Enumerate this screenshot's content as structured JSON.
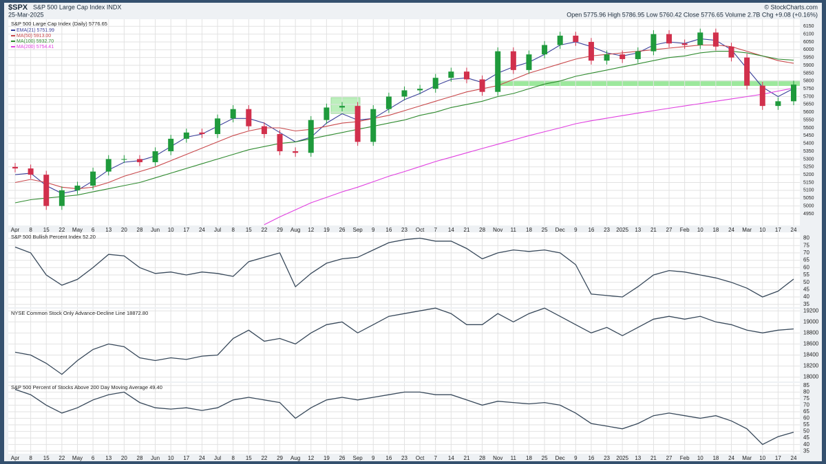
{
  "header": {
    "symbol": "$SPX",
    "name": "S&P 500 Large Cap Index INDX",
    "date": "25-Mar-2025",
    "quote": "Open 5775.96 High 5786.95 Low 5760.42 Close 5776.65 Volume 2.7B Chg +9.08 (+0.16%)",
    "credit": "© StockCharts.com"
  },
  "chart_data": [
    {
      "type": "candlestick",
      "title": "S&P 500 Large Cap Index (Daily) 5776.65",
      "categories": [
        "Apr",
        "8",
        "15",
        "22",
        "May",
        "6",
        "13",
        "20",
        "28",
        "Jun",
        "10",
        "17",
        "24",
        "Jul",
        "8",
        "15",
        "22",
        "29",
        "Aug",
        "12",
        "19",
        "26",
        "Sep",
        "9",
        "16",
        "23",
        "Oct",
        "7",
        "14",
        "21",
        "28",
        "Nov",
        "11",
        "18",
        "25",
        "Dec",
        "9",
        "16",
        "23",
        "2025",
        "13",
        "21",
        "27",
        "Feb",
        "10",
        "18",
        "24",
        "Mar",
        "10",
        "17",
        "24"
      ],
      "open": [
        5250,
        5240,
        5200,
        5000,
        5100,
        5130,
        5220,
        5300,
        5300,
        5280,
        5350,
        5430,
        5470,
        5460,
        5560,
        5620,
        5510,
        5460,
        5350,
        5340,
        5550,
        5630,
        5640,
        5410,
        5620,
        5700,
        5740,
        5750,
        5820,
        5860,
        5810,
        5730,
        5990,
        5870,
        5970,
        6030,
        6090,
        6050,
        5930,
        5970,
        5940,
        5990,
        6100,
        6040,
        6030,
        6110,
        6020,
        5950,
        5770,
        5640,
        5670
      ],
      "high": [
        5275,
        5265,
        5225,
        5125,
        5155,
        5245,
        5325,
        5325,
        5325,
        5375,
        5455,
        5495,
        5495,
        5585,
        5645,
        5645,
        5535,
        5485,
        5375,
        5575,
        5655,
        5665,
        5665,
        5645,
        5725,
        5765,
        5775,
        5845,
        5885,
        5885,
        5835,
        6015,
        6015,
        5995,
        6055,
        6115,
        6115,
        6075,
        5995,
        5995,
        6015,
        6125,
        6125,
        6065,
        6135,
        6135,
        6045,
        5975,
        5795,
        5695,
        5802
      ],
      "low": [
        5215,
        5175,
        4975,
        4975,
        5075,
        5105,
        5195,
        5275,
        5255,
        5255,
        5325,
        5405,
        5435,
        5435,
        5535,
        5485,
        5435,
        5325,
        5315,
        5315,
        5525,
        5605,
        5385,
        5385,
        5595,
        5675,
        5715,
        5725,
        5795,
        5785,
        5705,
        5705,
        5845,
        5845,
        5945,
        6005,
        6025,
        5905,
        5905,
        5915,
        5915,
        5965,
        6015,
        6005,
        6005,
        5995,
        5925,
        5745,
        5615,
        5615,
        5645
      ],
      "close": [
        5240,
        5200,
        5000,
        5100,
        5130,
        5220,
        5300,
        5300,
        5280,
        5350,
        5430,
        5470,
        5460,
        5560,
        5620,
        5510,
        5460,
        5350,
        5340,
        5550,
        5630,
        5640,
        5410,
        5620,
        5700,
        5740,
        5750,
        5820,
        5860,
        5810,
        5730,
        5990,
        5870,
        5970,
        6030,
        6090,
        6050,
        5930,
        5970,
        5940,
        5990,
        6100,
        6040,
        6030,
        6110,
        6020,
        5950,
        5770,
        5640,
        5670,
        5776.65
      ],
      "up_color": "#1f9a3c",
      "down_color": "#d1304c",
      "series": [
        {
          "name": "EMA(21) 5751.99",
          "color": "#3a3f9a",
          "values": [
            5200,
            5210,
            5130,
            5080,
            5100,
            5160,
            5230,
            5280,
            5290,
            5320,
            5380,
            5440,
            5460,
            5510,
            5560,
            5560,
            5530,
            5470,
            5410,
            5440,
            5530,
            5590,
            5550,
            5560,
            5620,
            5680,
            5720,
            5770,
            5810,
            5820,
            5790,
            5850,
            5890,
            5920,
            5970,
            6030,
            6050,
            6020,
            5980,
            5960,
            5980,
            6030,
            6050,
            6040,
            6070,
            6060,
            6000,
            5880,
            5760,
            5700,
            5752
          ]
        },
        {
          "name": "MA(50) 5913.00",
          "color": "#c8474a",
          "values": [
            5150,
            5170,
            5150,
            5120,
            5110,
            5120,
            5150,
            5190,
            5220,
            5250,
            5290,
            5330,
            5370,
            5410,
            5450,
            5480,
            5500,
            5500,
            5480,
            5490,
            5510,
            5530,
            5540,
            5560,
            5580,
            5610,
            5640,
            5670,
            5700,
            5730,
            5750,
            5770,
            5810,
            5850,
            5880,
            5910,
            5940,
            5960,
            5970,
            5980,
            5990,
            6000,
            6010,
            6020,
            6030,
            6030,
            6020,
            5990,
            5960,
            5930,
            5913
          ]
        },
        {
          "name": "MA(100) 5932.70",
          "color": "#2e8a2e",
          "values": [
            5020,
            5040,
            5050,
            5060,
            5070,
            5090,
            5110,
            5130,
            5150,
            5180,
            5210,
            5240,
            5270,
            5300,
            5330,
            5360,
            5380,
            5400,
            5410,
            5430,
            5450,
            5470,
            5490,
            5510,
            5530,
            5550,
            5580,
            5600,
            5630,
            5650,
            5670,
            5700,
            5720,
            5750,
            5780,
            5800,
            5830,
            5850,
            5870,
            5890,
            5910,
            5930,
            5950,
            5960,
            5980,
            5990,
            5990,
            5980,
            5960,
            5940,
            5933
          ]
        },
        {
          "name": "MA(200) 5754.41",
          "color": "#e03fe0",
          "values": [
            null,
            null,
            null,
            null,
            null,
            null,
            null,
            null,
            null,
            null,
            null,
            null,
            null,
            null,
            null,
            null,
            4880,
            4930,
            4975,
            5020,
            5055,
            5090,
            5120,
            5155,
            5190,
            5220,
            5252,
            5284,
            5312,
            5340,
            5368,
            5395,
            5422,
            5450,
            5475,
            5500,
            5526,
            5545,
            5562,
            5578,
            5594,
            5610,
            5625,
            5640,
            5655,
            5670,
            5685,
            5700,
            5715,
            5735,
            5754
          ]
        }
      ],
      "ylim": [
        4875,
        6195
      ],
      "yticks": [
        4950,
        5000,
        5050,
        5100,
        5150,
        5200,
        5250,
        5300,
        5350,
        5400,
        5450,
        5500,
        5550,
        5600,
        5650,
        5700,
        5750,
        5800,
        5850,
        5900,
        5950,
        6000,
        6050,
        6100,
        6150
      ],
      "grid": true
    },
    {
      "type": "line",
      "title": "S&P 500 Bullish Percent Index 52.20",
      "color": "#37485a",
      "values": [
        74,
        70,
        55,
        48,
        52,
        60,
        69,
        68,
        60,
        56,
        57,
        55,
        57,
        56,
        54,
        64,
        67,
        70,
        47,
        56,
        63,
        66,
        67,
        72,
        77,
        79,
        80,
        78,
        78,
        73,
        66,
        70,
        72,
        71,
        72,
        70,
        62,
        42,
        41,
        40,
        47,
        55,
        58,
        57,
        55,
        53,
        50,
        46,
        40,
        44,
        52.2
      ],
      "ylim": [
        33,
        84
      ],
      "yticks": [
        35,
        40,
        45,
        50,
        55,
        60,
        65,
        70,
        75,
        80
      ],
      "grid": true
    },
    {
      "type": "line",
      "title": "NYSE Common Stock Only Advance-Decline Line 18872.80",
      "color": "#37485a",
      "values": [
        18450,
        18400,
        18250,
        18050,
        18300,
        18500,
        18600,
        18550,
        18350,
        18300,
        18350,
        18320,
        18380,
        18400,
        18700,
        18850,
        18650,
        18700,
        18600,
        18800,
        18950,
        19000,
        18800,
        18950,
        19100,
        19150,
        19200,
        19250,
        19150,
        18950,
        18950,
        19150,
        19000,
        19150,
        19250,
        19100,
        18950,
        18800,
        18900,
        18750,
        18900,
        19050,
        19100,
        19050,
        19100,
        19000,
        18950,
        18850,
        18800,
        18850,
        18872.8
      ],
      "ylim": [
        17920,
        19240
      ],
      "yticks": [
        18000,
        18200,
        18400,
        18600,
        18800,
        19000,
        19200
      ],
      "grid": true
    },
    {
      "type": "line",
      "title": "S&P 500 Percent of Stocks Above 200 Day Moving Average 49.40",
      "color": "#37485a",
      "categories": [
        "Apr",
        "8",
        "15",
        "22",
        "May",
        "6",
        "13",
        "20",
        "28",
        "Jun",
        "10",
        "17",
        "24",
        "Jul",
        "8",
        "15",
        "22",
        "29",
        "Aug",
        "12",
        "19",
        "26",
        "Sep",
        "9",
        "16",
        "23",
        "Oct",
        "7",
        "14",
        "21",
        "28",
        "Nov",
        "11",
        "18",
        "25",
        "Dec",
        "9",
        "16",
        "23",
        "2025",
        "13",
        "21",
        "27",
        "Feb",
        "10",
        "18",
        "24",
        "Mar",
        "10",
        "17",
        "24"
      ],
      "values": [
        82,
        78,
        70,
        64,
        68,
        74,
        78,
        80,
        72,
        68,
        67,
        68,
        66,
        68,
        74,
        76,
        74,
        72,
        60,
        68,
        74,
        76,
        74,
        76,
        78,
        80,
        80,
        78,
        78,
        74,
        70,
        73,
        72,
        71,
        72,
        70,
        64,
        56,
        54,
        52,
        56,
        62,
        64,
        62,
        60,
        62,
        58,
        52,
        40,
        46,
        49.4
      ],
      "ylim": [
        33,
        87
      ],
      "yticks": [
        35,
        40,
        45,
        50,
        55,
        60,
        65,
        70,
        75,
        80,
        85
      ],
      "grid": true
    }
  ]
}
